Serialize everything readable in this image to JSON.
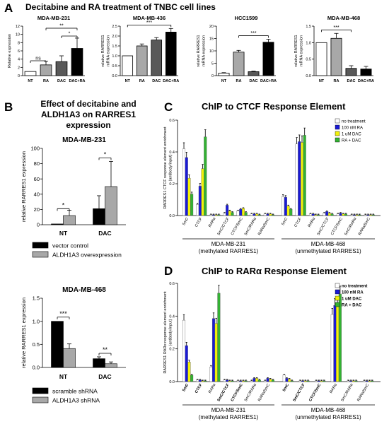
{
  "panel_a": {
    "letter": "A",
    "title": "Decitabine and RA treatment of TNBC cell lines"
  },
  "panel_b": {
    "letter": "B",
    "title_lines": [
      "Effect of decitabine and",
      "ALDH1A3 on RARRES1",
      "expression"
    ]
  },
  "panel_c": {
    "letter": "C",
    "title": "ChIP to CTCF Response Element"
  },
  "panel_d": {
    "letter": "D",
    "title": "ChIP to RARα Response Element"
  },
  "colors": {
    "white": "#ffffff",
    "light_gray": "#a8a8a8",
    "dark_gray": "#595959",
    "black": "#000000",
    "blue": "#1a1ad6",
    "yellow": "#f2f20a",
    "green": "#33b233",
    "bg_gray": "#999999"
  },
  "chart_data": [
    {
      "id": "a1",
      "type": "bar",
      "title": "MDA-MB-231",
      "ylabel": "Relative expression",
      "categories": [
        "NT",
        "RA",
        "DAC",
        "DAC+RA"
      ],
      "values": [
        1,
        2.6,
        3.4,
        6.6
      ],
      "errors": [
        0,
        0.9,
        1.4,
        2.5
      ],
      "ylim": [
        0,
        12
      ],
      "yticks": [
        "0",
        "2",
        "4",
        "6",
        "8",
        "10",
        "12"
      ],
      "sig": [
        {
          "from": 0,
          "to": 1,
          "label": "ns"
        },
        {
          "from": 1,
          "to": 3,
          "label": "**"
        },
        {
          "from": 2,
          "to": 3,
          "label": "*"
        }
      ]
    },
    {
      "id": "a2",
      "type": "bar",
      "title": "MDA-MB-436",
      "ylabel": "relative RARRES1 mRNA expression",
      "categories": [
        "NT",
        "RA",
        "DAC",
        "DAC+RA"
      ],
      "values": [
        1.0,
        1.5,
        1.8,
        2.2
      ],
      "errors": [
        0,
        0.1,
        0.12,
        0.18
      ],
      "ylim": [
        0,
        2.5
      ],
      "yticks": [
        "0.0",
        "0.5",
        "1.0",
        "1.5",
        "2.0",
        "2.5"
      ],
      "sig": [
        {
          "from": 0,
          "to": 3,
          "label": "***"
        }
      ]
    },
    {
      "id": "a3",
      "type": "bar",
      "title": "HCC1599",
      "ylabel": "relative RARRES1 mRNA expression",
      "categories": [
        "NT",
        "RA",
        "DAC",
        "DAC+RA"
      ],
      "values": [
        1,
        9.5,
        1.6,
        13.5
      ],
      "errors": [
        0.2,
        0.7,
        0.2,
        1.2
      ],
      "ylim": [
        0,
        20
      ],
      "yticks": [
        "0",
        "5",
        "10",
        "15",
        "20"
      ],
      "sig": [
        {
          "from": 1,
          "to": 3,
          "label": "***"
        }
      ]
    },
    {
      "id": "a4",
      "type": "bar",
      "title": "MDA-MB-468",
      "ylabel": "relative RARRES1 mRNA expression",
      "categories": [
        "NT",
        "RA",
        "DAC",
        "DAC+RA"
      ],
      "values": [
        1.0,
        1.13,
        0.22,
        0.2
      ],
      "errors": [
        0,
        0.15,
        0.08,
        0.08
      ],
      "ylim": [
        0,
        1.5
      ],
      "yticks": [
        "0.0",
        "0.5",
        "1.0",
        "1.5"
      ],
      "sig": [
        {
          "from": 0,
          "to": 2,
          "label": "***"
        }
      ]
    },
    {
      "id": "b1",
      "type": "bar",
      "title": "MDA-MB-231",
      "ylabel": "relative RARRES1 expression",
      "categories": [
        "NT",
        "DAC"
      ],
      "series": [
        {
          "name": "vector control",
          "values": [
            1,
            21
          ],
          "errors": [
            0,
            17
          ]
        },
        {
          "name": "ALDH1A3 overexpression",
          "values": [
            12,
            50
          ],
          "errors": [
            7,
            33
          ]
        }
      ],
      "ylim": [
        0,
        100
      ],
      "yticks": [
        "0",
        "20",
        "40",
        "60",
        "80",
        "100"
      ],
      "sig": [
        {
          "cat": 0,
          "label": "*"
        },
        {
          "cat": 1,
          "label": "*"
        }
      ]
    },
    {
      "id": "b2",
      "type": "bar",
      "title": "MDA-MB-468",
      "ylabel": "relative RARRES1 expression",
      "categories": [
        "NT",
        "DAC"
      ],
      "series": [
        {
          "name": "scramble shRNA",
          "values": [
            1.0,
            0.19
          ],
          "errors": [
            0,
            0.04
          ]
        },
        {
          "name": "ALDH1A3 shRNA",
          "values": [
            0.41,
            0.08
          ],
          "errors": [
            0.1,
            0.04
          ]
        }
      ],
      "ylim": [
        0,
        1.5
      ],
      "yticks": [
        "0.0",
        "0.5",
        "1.0",
        "1.5"
      ],
      "sig": [
        {
          "cat": 0,
          "label": "***"
        },
        {
          "cat": 1,
          "label": "**"
        }
      ]
    },
    {
      "id": "c",
      "type": "bar",
      "ylabel_lines": [
        "RARRES1 CTCF response element enrichment",
        "(antibody/input)"
      ],
      "ylim": [
        0,
        0.6
      ],
      "yticks": [
        "0.0",
        "0.2",
        "0.4",
        "0.6"
      ],
      "series_names": [
        "no treatment",
        "100 nM RA",
        "1 uM DAC",
        "RA + DAC"
      ],
      "groups": [
        {
          "label_lines": [
            "MDA-MB-231",
            "(methylated RARRES1)"
          ],
          "categories": [
            "5mC",
            "CTCF",
            "RARα",
            "5mC/CTCF",
            "CTCF/5mC",
            "5mC/RARα",
            "RARα/5mC"
          ],
          "values": [
            [
              0.42,
              0.07,
              0.005,
              0.015,
              0.03,
              0.01,
              0.01
            ],
            [
              0.365,
              0.185,
              0.005,
              0.065,
              0.04,
              0.01,
              0.01
            ],
            [
              0.235,
              0.295,
              0.005,
              0.03,
              0.045,
              0.01,
              0.01
            ],
            [
              0.135,
              0.495,
              0.005,
              0.02,
              0.02,
              0.005,
              0.005
            ]
          ]
        },
        {
          "label_lines": [
            "MDA-MB-468",
            "(unmethylated RARRES1)"
          ],
          "categories": [
            "5mC",
            "CTCF",
            "RARα",
            "5mC/CTCF",
            "CTCF/5mC",
            "5mC/RARα",
            "RARα/5mC"
          ],
          "values": [
            [
              0.12,
              0.45,
              0.01,
              0.015,
              0.01,
              0.005,
              0.005
            ],
            [
              0.115,
              0.465,
              0.01,
              0.025,
              0.015,
              0.005,
              0.005
            ],
            [
              0.06,
              0.46,
              0.005,
              0.015,
              0.01,
              0.005,
              0.005
            ],
            [
              0.04,
              0.505,
              0.005,
              0.01,
              0.01,
              0.005,
              0.005
            ]
          ]
        }
      ]
    },
    {
      "id": "d",
      "type": "bar",
      "ylabel_lines": [
        "RARRES1 RARα response element enrichment",
        "(antibody/input)"
      ],
      "ylim": [
        0,
        0.6
      ],
      "yticks": [
        "0.0",
        "0.2",
        "0.4",
        "0.6"
      ],
      "series_names": [
        "no treatment",
        "100 nM RA",
        "1 uM DAC",
        "RA + DAC"
      ],
      "groups": [
        {
          "label_lines": [
            "MDA-MB-231",
            "(methylated RARRES1)"
          ],
          "categories": [
            "5mC",
            "CTCF",
            "RARα",
            "5mC/CTCF",
            "CTCF/5mC",
            "5mC/RARα",
            "RARα/5mC"
          ],
          "values": [
            [
              0.375,
              0.01,
              0.09,
              0.01,
              0.005,
              0.005,
              0.005
            ],
            [
              0.22,
              0.01,
              0.385,
              0.01,
              0.005,
              0.02,
              0.02
            ],
            [
              0.12,
              0.005,
              0.355,
              0.005,
              0.005,
              0.02,
              0.015
            ],
            [
              0.04,
              0.005,
              0.54,
              0.005,
              0.005,
              0.01,
              0.01
            ]
          ]
        },
        {
          "label_lines": [
            "MDA-MB-468",
            "(unmethylated RARRES1)"
          ],
          "categories": [
            "5mC",
            "5mC/CTCF",
            "CTCF/5mC",
            "RARα",
            "5mC/RARα",
            "RARα/5mC"
          ],
          "values": [
            [
              0.04,
              0.005,
              0.005,
              0.41,
              0.005,
              0.005
            ],
            [
              0.02,
              0.005,
              0.005,
              0.465,
              0.005,
              0.005
            ],
            [
              0.015,
              0.005,
              0.005,
              0.47,
              0.005,
              0.005
            ],
            [
              0.005,
              0.005,
              0.005,
              0.535,
              0.005,
              0.005
            ]
          ]
        }
      ]
    }
  ]
}
